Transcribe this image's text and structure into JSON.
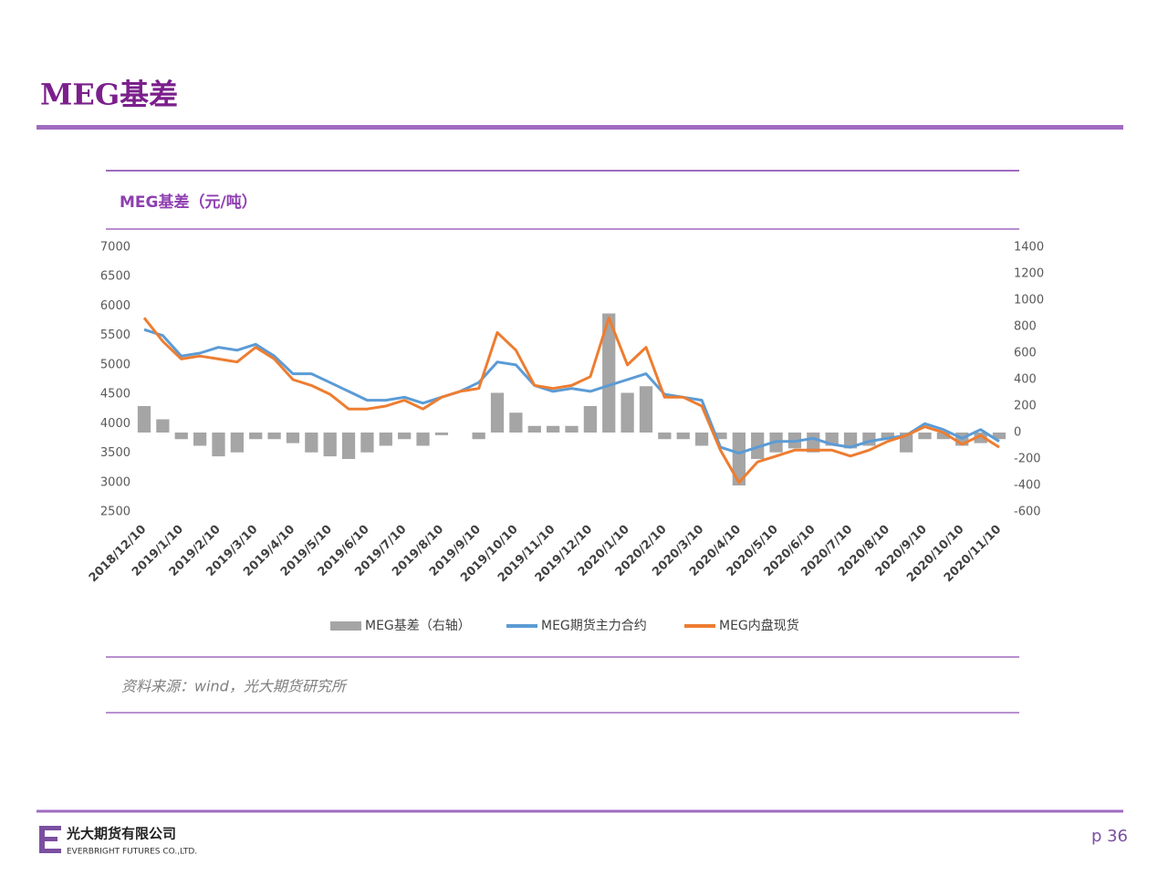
{
  "header": {
    "title": "MEG基差"
  },
  "chart_data": {
    "type": "line",
    "title": "MEG基差（元/吨）",
    "categories": [
      "2018/12/10",
      null,
      "2019/1/10",
      null,
      "2019/2/10",
      null,
      "2019/3/10",
      null,
      "2019/4/10",
      null,
      "2019/5/10",
      null,
      "2019/6/10",
      null,
      "2019/7/10",
      null,
      "2019/8/10",
      null,
      "2019/9/10",
      null,
      "2019/10/10",
      null,
      "2019/11/10",
      null,
      "2019/12/10",
      null,
      "2020/1/10",
      null,
      "2020/2/10",
      null,
      "2020/3/10",
      null,
      "2020/4/10",
      null,
      "2020/5/10",
      null,
      "2020/6/10",
      null,
      "2020/7/10",
      null,
      "2020/8/10",
      null,
      "2020/9/10",
      null,
      "2020/10/10",
      null,
      "2020/11/10"
    ],
    "series": [
      {
        "name": "MEG基差（右轴）",
        "type": "bar",
        "axis": "y2",
        "color": "#a5a5a5",
        "values": [
          200,
          100,
          -50,
          -100,
          -180,
          -150,
          -50,
          -50,
          -80,
          -150,
          -180,
          -200,
          -150,
          -100,
          -50,
          -100,
          -20,
          0,
          -50,
          300,
          150,
          50,
          50,
          50,
          200,
          900,
          300,
          350,
          -50,
          -50,
          -100,
          -50,
          -400,
          -200,
          -150,
          -120,
          -150,
          -100,
          -120,
          -100,
          -50,
          -150,
          -50,
          -50,
          -100,
          -80,
          -50
        ]
      },
      {
        "name": "MEG期货主力合约",
        "type": "line",
        "color": "#5b9bd5",
        "values": [
          5600,
          5500,
          5150,
          5200,
          5300,
          5250,
          5350,
          5150,
          4850,
          4850,
          4700,
          4550,
          4400,
          4400,
          4450,
          4350,
          4450,
          4550,
          4700,
          5050,
          5000,
          4650,
          4550,
          4600,
          4550,
          4650,
          4750,
          4850,
          4500,
          4450,
          4400,
          3600,
          3500,
          3600,
          3700,
          3700,
          3750,
          3650,
          3600,
          3700,
          3750,
          3800,
          4000,
          3900,
          3750,
          3900,
          3700
        ]
      },
      {
        "name": "MEG内盘现货",
        "type": "line",
        "color": "#ed7d31",
        "values": [
          5800,
          5400,
          5100,
          5150,
          5100,
          5050,
          5300,
          5100,
          4750,
          4650,
          4500,
          4250,
          4250,
          4300,
          4400,
          4250,
          4450,
          4550,
          4600,
          5550,
          5250,
          4650,
          4600,
          4650,
          4800,
          5800,
          5000,
          5300,
          4450,
          4450,
          4300,
          3550,
          3000,
          3350,
          3450,
          3550,
          3550,
          3550,
          3450,
          3550,
          3700,
          3800,
          3950,
          3850,
          3650,
          3800,
          3600
        ]
      }
    ],
    "ylim": [
      2500,
      7000
    ],
    "yticks": [
      2500,
      3000,
      3500,
      4000,
      4500,
      5000,
      5500,
      6000,
      6500,
      7000
    ],
    "y2lim": [
      -600,
      1400
    ],
    "y2ticks": [
      -600,
      -400,
      -200,
      0,
      200,
      400,
      600,
      800,
      1000,
      1200,
      1400
    ],
    "grid": false,
    "legend": "bottom"
  },
  "source": "资料来源：wind，光大期货研究所",
  "footer": {
    "company": "光大期货有限公司",
    "company_en": "EVERBRIGHT FUTURES CO.,LTD.",
    "page": "p 36"
  }
}
